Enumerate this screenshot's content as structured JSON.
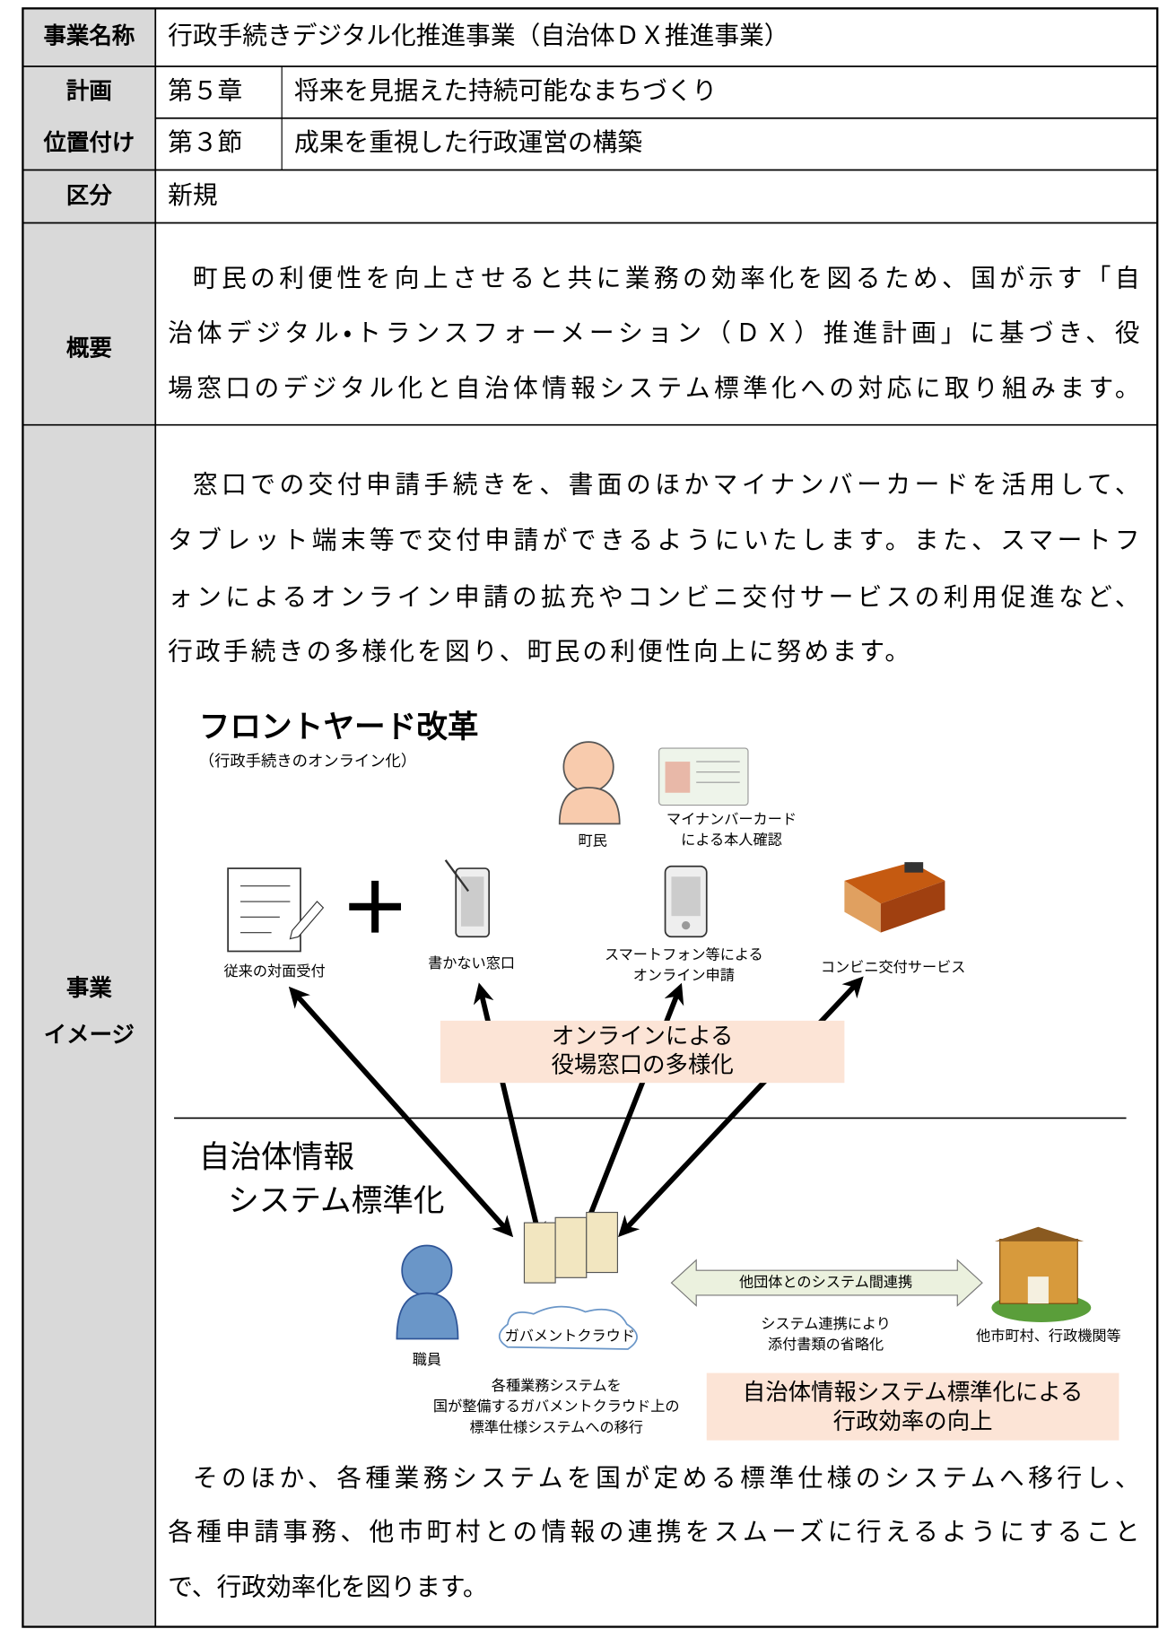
{
  "project_name": {
    "label": "事業名称",
    "value": "行政手続きデジタル化推進事業（自治体ＤＸ推進事業）"
  },
  "plan": {
    "labels": [
      "計画",
      "位置付け"
    ],
    "items": [
      {
        "key": "第５章",
        "text": "将来を見据えた持続可能なまちづくり"
      },
      {
        "key": "第３節",
        "text": "成果を重視した行政運営の構築"
      }
    ]
  },
  "category": {
    "label": "区分",
    "value": "新規"
  },
  "overview": {
    "label": "概要",
    "lines": [
      "町民の利便性を向上させると共に業務の効率化を図るため、国が示す「自",
      "治体デジタル・トランスフォーメーション（ＤＸ）推進計画」に基づき、役",
      "場窓口のデジタル化と自治体情報システム標準化への対応に取り組みます。"
    ]
  },
  "image": {
    "labels": [
      "事業",
      "イメージ"
    ],
    "intro_lines": [
      "窓口での交付申請手続きを、書面のほかマイナンバーカードを活用して、",
      "タブレット端末等で交付申請ができるようにいたします。また、スマートフ",
      "ォンによるオンライン申請の拡充やコンビニ交付サービスの利用促進など、",
      "行政手続きの多様化を図り、町民の利便性向上に努めます。"
    ],
    "diagram": {
      "frontyard_title": "フロントヤード改革",
      "frontyard_subtitle": "（行政手続きのオンライン化）",
      "citizen": "町民",
      "mynumber_card": [
        "マイナンバーカード",
        "による本人確認"
      ],
      "conventional": "従来の対面受付",
      "no_writing": "書かない窓口",
      "smartphone": [
        "スマートフォン等による",
        "オンライン申請"
      ],
      "convenience": "コンビニ交付サービス",
      "online_box": [
        "オンラインによる",
        "役場窓口の多様化"
      ],
      "local_title": [
        "自治体情報",
        "システム標準化"
      ],
      "staff": "職員",
      "cloud": "ガバメントクラウド",
      "migration": [
        "各種業務システムを",
        "国が整備するガバメントクラウド上の",
        "標準仕様システムへの移行"
      ],
      "linkage_arrow": "他団体とのシステム間連携",
      "linkage_note": [
        "システム連携により",
        "添付書類の省略化"
      ],
      "other_bodies": "他市町村、行政機関等",
      "efficiency_box": [
        "自治体情報システム標準化による",
        "行政効率の向上"
      ]
    },
    "closing_lines": [
      "そのほか、各種業務システムを国が定める標準仕様のシステムへ移行し、",
      "各種申請事務、他市町村との情報の連携をスムーズに行えるようにすること",
      "で、行政効率化を図ります。"
    ]
  }
}
